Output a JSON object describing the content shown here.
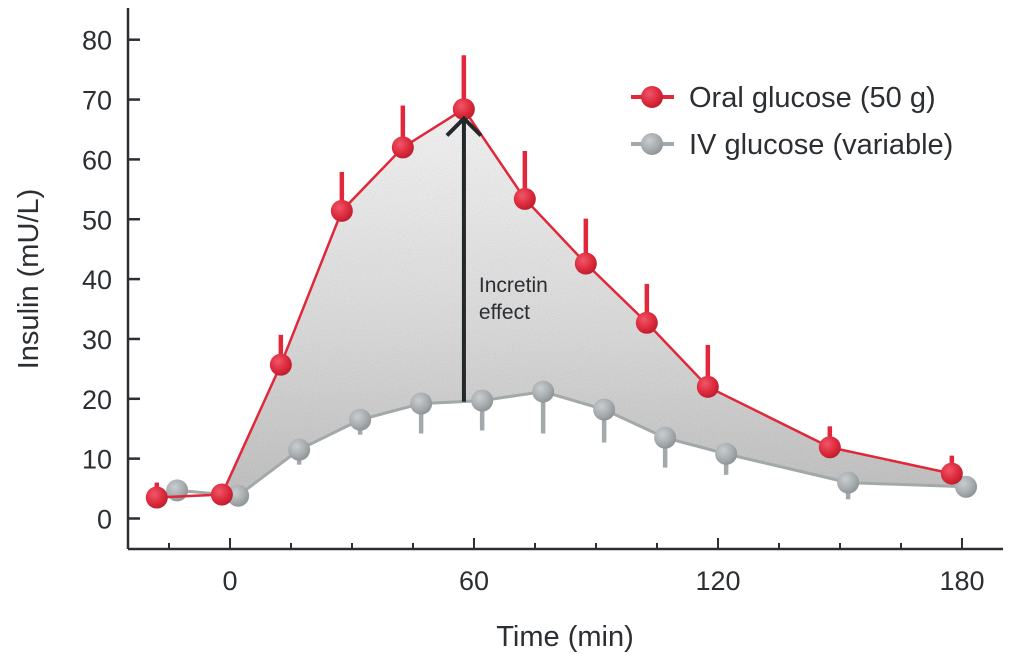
{
  "chart_data": {
    "type": "line",
    "title": "",
    "xlabel": "Time (min)",
    "ylabel": "Insulin (mU/L)",
    "xlim": [
      -25,
      190
    ],
    "ylim": [
      -5,
      83
    ],
    "x_ticks": [
      0,
      60,
      120,
      180
    ],
    "x_minor_ticks": [
      -15,
      15,
      30,
      45,
      75,
      90,
      105,
      135,
      150,
      165
    ],
    "y_ticks": [
      0,
      10,
      20,
      30,
      40,
      50,
      60,
      70,
      80
    ],
    "grid": false,
    "legend_position": "top-right",
    "series": [
      {
        "name": "Oral glucose (50 g)",
        "color": "#e0283a",
        "error_direction": "up",
        "points": [
          {
            "x": -18,
            "y": 3.5,
            "err": 2.5
          },
          {
            "x": -2,
            "y": 4,
            "err": 0
          },
          {
            "x": 12.5,
            "y": 25.7,
            "err": 5
          },
          {
            "x": 27.5,
            "y": 51.4,
            "err": 6.5
          },
          {
            "x": 42.5,
            "y": 62,
            "err": 7
          },
          {
            "x": 57.5,
            "y": 68.4,
            "err": 9
          },
          {
            "x": 72.5,
            "y": 53.4,
            "err": 8
          },
          {
            "x": 87.5,
            "y": 42.6,
            "err": 7.5
          },
          {
            "x": 102.5,
            "y": 32.7,
            "err": 6.5
          },
          {
            "x": 117.5,
            "y": 22,
            "err": 7
          },
          {
            "x": 147.5,
            "y": 11.9,
            "err": 3.5
          },
          {
            "x": 177.5,
            "y": 7.5,
            "err": 3
          }
        ]
      },
      {
        "name": "IV glucose (variable)",
        "color": "#9ea3a5",
        "error_direction": "down",
        "points": [
          {
            "x": -13,
            "y": 4.7,
            "err": 0
          },
          {
            "x": 2,
            "y": 3.8,
            "err": 0
          },
          {
            "x": 17,
            "y": 11.5,
            "err": 2.5
          },
          {
            "x": 32,
            "y": 16.5,
            "err": 2.5
          },
          {
            "x": 47,
            "y": 19.2,
            "err": 5
          },
          {
            "x": 62,
            "y": 19.7,
            "err": 5
          },
          {
            "x": 77,
            "y": 21.2,
            "err": 7
          },
          {
            "x": 92,
            "y": 18.2,
            "err": 5.5
          },
          {
            "x": 107,
            "y": 13.5,
            "err": 5
          },
          {
            "x": 122,
            "y": 10.8,
            "err": 3.5
          },
          {
            "x": 152,
            "y": 6,
            "err": 2.8
          },
          {
            "x": 181,
            "y": 5.3,
            "err": 1.8
          }
        ]
      }
    ],
    "annotations": [
      {
        "text_lines": [
          "Incretin",
          "effect"
        ],
        "arrow_x": 59,
        "arrow_from_y": 19.5,
        "arrow_to_y": 65.5
      }
    ]
  }
}
